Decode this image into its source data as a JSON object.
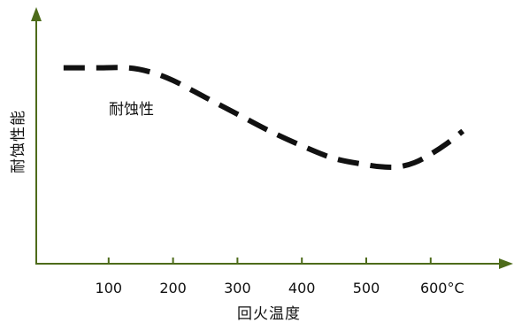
{
  "chart_data": {
    "type": "line",
    "title": "",
    "xlabel": "回火温度",
    "ylabel": "耐蚀性能",
    "annotation": "耐蚀性",
    "x_ticks": [
      "100",
      "200",
      "300",
      "400",
      "500",
      "600°C"
    ],
    "xlim": [
      0,
      670
    ],
    "ylim": [
      0,
      1
    ],
    "grid": false,
    "colors": {
      "axis": "#4d6b1a",
      "line": "#111111"
    },
    "line_style": "dashed",
    "series": [
      {
        "x": [
          30,
          80,
          130,
          165,
          200,
          250,
          300,
          350,
          400,
          450,
          500,
          525,
          550,
          575,
          600,
          625,
          650
        ],
        "y": [
          0.93,
          0.93,
          0.93,
          0.91,
          0.87,
          0.79,
          0.71,
          0.63,
          0.56,
          0.5,
          0.47,
          0.46,
          0.46,
          0.48,
          0.52,
          0.57,
          0.63
        ]
      }
    ]
  }
}
